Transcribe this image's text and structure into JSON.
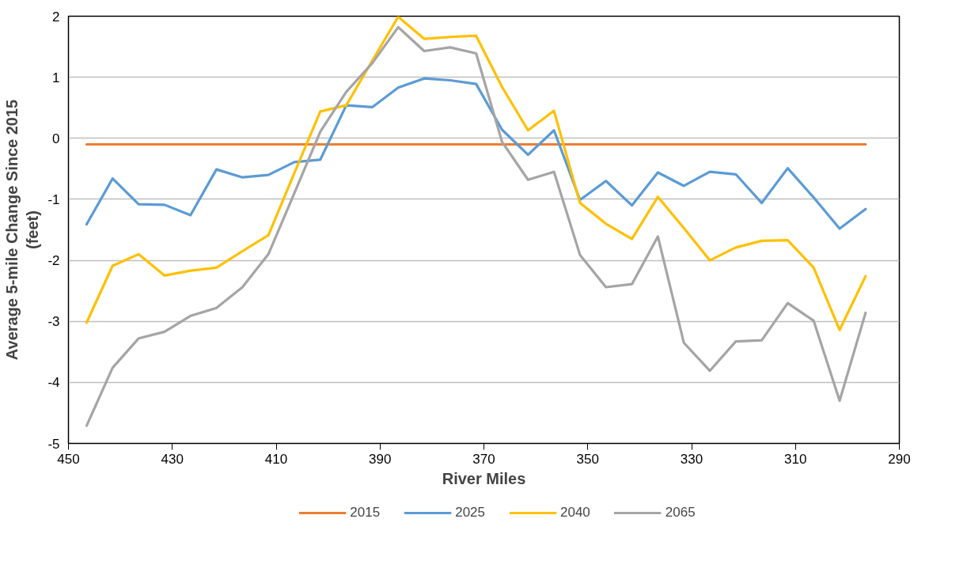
{
  "chart_data": {
    "type": "line",
    "xlabel": "River Miles",
    "ylabel": "Average 5-mile Change Since 2015 (feet)",
    "x": [
      446.5,
      441.5,
      436.5,
      431.5,
      426.5,
      421.5,
      416.5,
      411.5,
      406.5,
      401.5,
      396.5,
      391.5,
      386.5,
      381.5,
      376.5,
      371.5,
      366.5,
      361.5,
      356.5,
      351.5,
      346.5,
      341.5,
      336.5,
      331.5,
      326.5,
      321.5,
      316.5,
      311.5,
      306.5,
      301.5,
      296.5
    ],
    "series": [
      {
        "name": "2015",
        "color": "#ed7d31",
        "values": [
          -0.1,
          -0.1,
          -0.1,
          -0.1,
          -0.1,
          -0.1,
          -0.1,
          -0.1,
          -0.1,
          -0.1,
          -0.1,
          -0.1,
          -0.1,
          -0.1,
          -0.1,
          -0.1,
          -0.1,
          -0.1,
          -0.1,
          -0.1,
          -0.1,
          -0.1,
          -0.1,
          -0.1,
          -0.1,
          -0.1,
          -0.1,
          -0.1,
          -0.1,
          -0.1,
          -0.1
        ]
      },
      {
        "name": "2025",
        "color": "#5b9bd5",
        "values": [
          -1.41,
          -0.66,
          -1.08,
          -1.09,
          -1.26,
          -0.51,
          -0.64,
          -0.6,
          -0.39,
          -0.35,
          0.54,
          0.51,
          0.83,
          0.98,
          0.95,
          0.89,
          0.14,
          -0.27,
          0.13,
          -1.01,
          -0.7,
          -1.1,
          -0.56,
          -0.78,
          -0.55,
          -0.59,
          -1.06,
          -0.49,
          -0.97,
          -1.48,
          -1.16
        ]
      },
      {
        "name": "2040",
        "color": "#ffc000",
        "values": [
          -3.02,
          -2.09,
          -1.9,
          -2.25,
          -2.17,
          -2.12,
          -1.85,
          -1.59,
          -0.57,
          0.44,
          0.54,
          1.27,
          1.99,
          1.63,
          1.66,
          1.68,
          0.84,
          0.13,
          0.45,
          -1.06,
          -1.4,
          -1.65,
          -0.96,
          -1.47,
          -2.0,
          -1.79,
          -1.68,
          -1.67,
          -2.12,
          -3.14,
          -2.26
        ]
      },
      {
        "name": "2065",
        "color": "#a5a5a5",
        "values": [
          -4.71,
          -3.76,
          -3.28,
          -3.17,
          -2.91,
          -2.78,
          -2.44,
          -1.9,
          -0.9,
          0.11,
          0.76,
          1.23,
          1.82,
          1.43,
          1.49,
          1.39,
          -0.06,
          -0.68,
          -0.55,
          -1.91,
          -2.44,
          -2.39,
          -1.61,
          -3.35,
          -3.81,
          -3.33,
          -3.31,
          -2.7,
          -2.99,
          -4.3,
          -2.86
        ]
      }
    ],
    "xlim": [
      450,
      290
    ],
    "xticks": [
      450,
      430,
      410,
      390,
      370,
      350,
      330,
      310,
      290
    ],
    "ylim": [
      -5,
      2
    ],
    "yticks": [
      -5,
      -4,
      -3,
      -2,
      -1,
      0,
      1,
      2
    ],
    "grid": "y",
    "legend": "bottom",
    "marker": "none",
    "line_style": "solid"
  }
}
